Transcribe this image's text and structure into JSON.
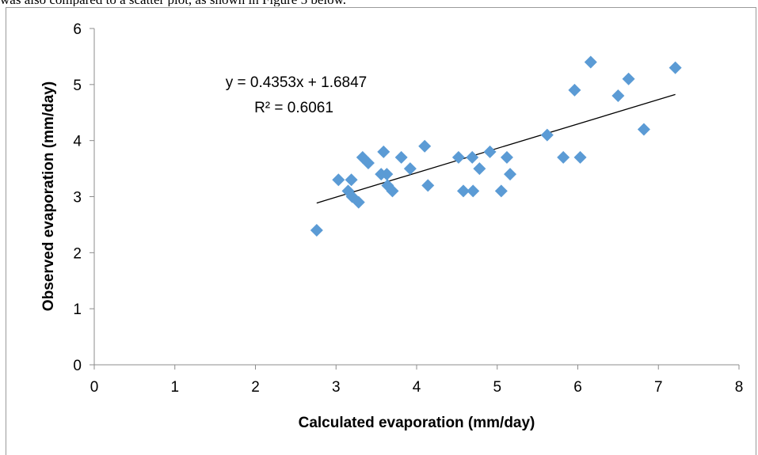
{
  "caption": {
    "text": "was also compared to a scatter plot, as shown in Figure 5 below."
  },
  "chart_data": {
    "type": "scatter",
    "title": "",
    "xlabel": "Calculated evaporation (mm/day)",
    "ylabel": "Observed evaporation (mm/day)",
    "xlim": [
      0,
      8
    ],
    "ylim": [
      0,
      6
    ],
    "x_ticks": [
      "0",
      "1",
      "2",
      "3",
      "4",
      "5",
      "6",
      "7",
      "8"
    ],
    "y_ticks": [
      "0",
      "1",
      "2",
      "3",
      "4",
      "5",
      "6"
    ],
    "grid": false,
    "legend": "none",
    "marker": "diamond",
    "marker_color": "#5b9bd5",
    "series": [
      {
        "points": [
          {
            "x": 2.76,
            "y": 2.4
          },
          {
            "x": 3.03,
            "y": 3.3
          },
          {
            "x": 3.15,
            "y": 3.1
          },
          {
            "x": 3.19,
            "y": 3.3
          },
          {
            "x": 3.2,
            "y": 3.0
          },
          {
            "x": 3.28,
            "y": 2.9
          },
          {
            "x": 3.33,
            "y": 3.7
          },
          {
            "x": 3.4,
            "y": 3.6
          },
          {
            "x": 3.56,
            "y": 3.4
          },
          {
            "x": 3.59,
            "y": 3.8
          },
          {
            "x": 3.63,
            "y": 3.4
          },
          {
            "x": 3.64,
            "y": 3.2
          },
          {
            "x": 3.7,
            "y": 3.1
          },
          {
            "x": 3.81,
            "y": 3.7
          },
          {
            "x": 3.92,
            "y": 3.5
          },
          {
            "x": 4.1,
            "y": 3.9
          },
          {
            "x": 4.14,
            "y": 3.2
          },
          {
            "x": 4.52,
            "y": 3.7
          },
          {
            "x": 4.58,
            "y": 3.1
          },
          {
            "x": 4.69,
            "y": 3.7
          },
          {
            "x": 4.7,
            "y": 3.1
          },
          {
            "x": 4.78,
            "y": 3.5
          },
          {
            "x": 4.91,
            "y": 3.8
          },
          {
            "x": 5.05,
            "y": 3.1
          },
          {
            "x": 5.12,
            "y": 3.7
          },
          {
            "x": 5.16,
            "y": 3.4
          },
          {
            "x": 5.62,
            "y": 4.1
          },
          {
            "x": 5.82,
            "y": 3.7
          },
          {
            "x": 5.96,
            "y": 4.9
          },
          {
            "x": 6.03,
            "y": 3.7
          },
          {
            "x": 6.16,
            "y": 5.4
          },
          {
            "x": 6.5,
            "y": 4.8
          },
          {
            "x": 6.63,
            "y": 5.1
          },
          {
            "x": 6.82,
            "y": 4.2
          },
          {
            "x": 7.21,
            "y": 5.3
          }
        ]
      }
    ],
    "trendline": {
      "slope": 0.4353,
      "intercept": 1.6847,
      "x_range": [
        2.76,
        7.21
      ],
      "color": "#000000"
    },
    "annotations": {
      "equation": "y = 0.4353x + 1.6847",
      "r_squared": "R² = 0.6061"
    }
  }
}
